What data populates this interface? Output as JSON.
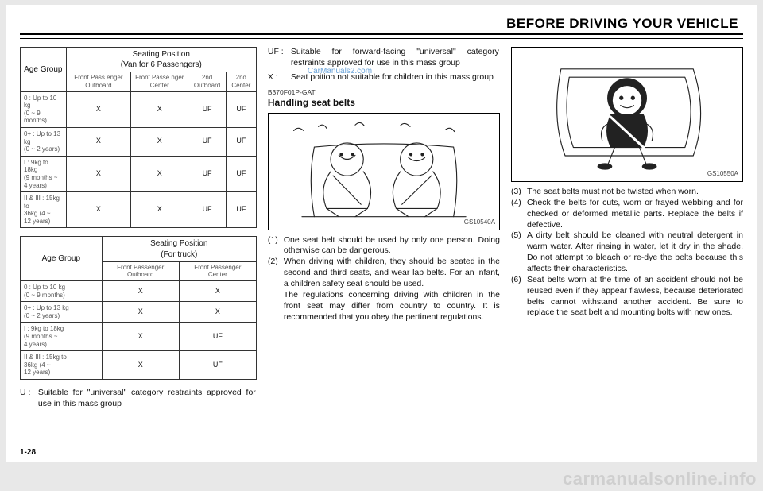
{
  "header": "BEFORE DRIVING YOUR VEHICLE",
  "pagefoot": "1-28",
  "watermark_bottom": "carmanualsonline.info",
  "watermark_mid": "CarManuals2.com",
  "table1": {
    "age_head": "Age Group",
    "seat_head_l1": "Seating Position",
    "seat_head_l2": "(Van for 6 Passengers)",
    "cols": [
      "Front  Pass enger  Outboard",
      "Front  Passe nger  Center",
      "2nd Outboard",
      "2nd Center"
    ],
    "rows": [
      {
        "age": "0 : Up to 10 kg\n(0 ~ 9 months)",
        "v": [
          "X",
          "X",
          "UF",
          "UF"
        ]
      },
      {
        "age": "0+ : Up to 13 kg\n(0 ~ 2 years)",
        "v": [
          "X",
          "X",
          "UF",
          "UF"
        ]
      },
      {
        "age": "I : 9kg to 18kg\n(9 months ~\n4 years)",
        "v": [
          "X",
          "X",
          "UF",
          "UF"
        ]
      },
      {
        "age": "II & III : 15kg to\n36kg (4 ~\n12 years)",
        "v": [
          "X",
          "X",
          "UF",
          "UF"
        ]
      }
    ]
  },
  "table2": {
    "age_head": "Age Group",
    "seat_head_l1": "Seating Position",
    "seat_head_l2": "(For truck)",
    "cols": [
      "Front  Passenger\nOutboard",
      "Front  Passenger\nCenter"
    ],
    "rows": [
      {
        "age": "0 : Up to 10 kg\n(0 ~ 9 months)",
        "v": [
          "X",
          "X"
        ]
      },
      {
        "age": "0+ : Up to 13 kg\n(0 ~ 2 years)",
        "v": [
          "X",
          "X"
        ]
      },
      {
        "age": "I : 9kg to 18kg\n(9 months ~\n4 years)",
        "v": [
          "X",
          "UF"
        ]
      },
      {
        "age": "II & III : 15kg to\n36kg (4 ~\n12 years)",
        "v": [
          "X",
          "UF"
        ]
      }
    ]
  },
  "legend": {
    "u_lbl": "U  :",
    "u_txt": "Suitable for \"universal\" category restraints approved for use in this mass group",
    "uf_lbl": "UF :",
    "uf_txt": "Suitable for forward-facing \"universal\" category restraints approved for use in this mass group",
    "x_lbl": "X  :",
    "x_txt": "Seat poition not suitable for children in this mass group"
  },
  "section2": {
    "code": "B370F01P-GAT",
    "title": "Handling seat belts",
    "img_ref": "GS10540A",
    "p1_n": "(1)",
    "p1": "One seat belt should be used by only one person. Doing otherwise can be dangerous.",
    "p2_n": "(2)",
    "p2a": "When driving with children, they should be seated in the second and third seats, and wear lap belts. For an infant, a children safety seat should be used.",
    "p2b": "The regulations concerning driving with children in the front seat may differ from country to country. It is recommended that you obey the pertinent regulations."
  },
  "col3": {
    "img_ref": "GS10550A",
    "p3_n": "(3)",
    "p3": "The seat belts must not be twisted when worn.",
    "p4_n": "(4)",
    "p4": "Check the belts for cuts, worn or frayed webbing and for checked or deformed metallic parts. Replace the belts if defective.",
    "p5_n": "(5)",
    "p5": "A dirty belt should be cleaned with neutral detergent in warm water. After rinsing in water, let it dry in the shade. Do not attempt to bleach or re-dye  the belts because this affects their characteristics.",
    "p6_n": "(6)",
    "p6": "Seat belts worn at the time of an accident should not be reused even if they appear flawless, because deteriorated belts cannot withstand another accident. Be sure to replace the seat belt and mounting bolts with new ones."
  }
}
